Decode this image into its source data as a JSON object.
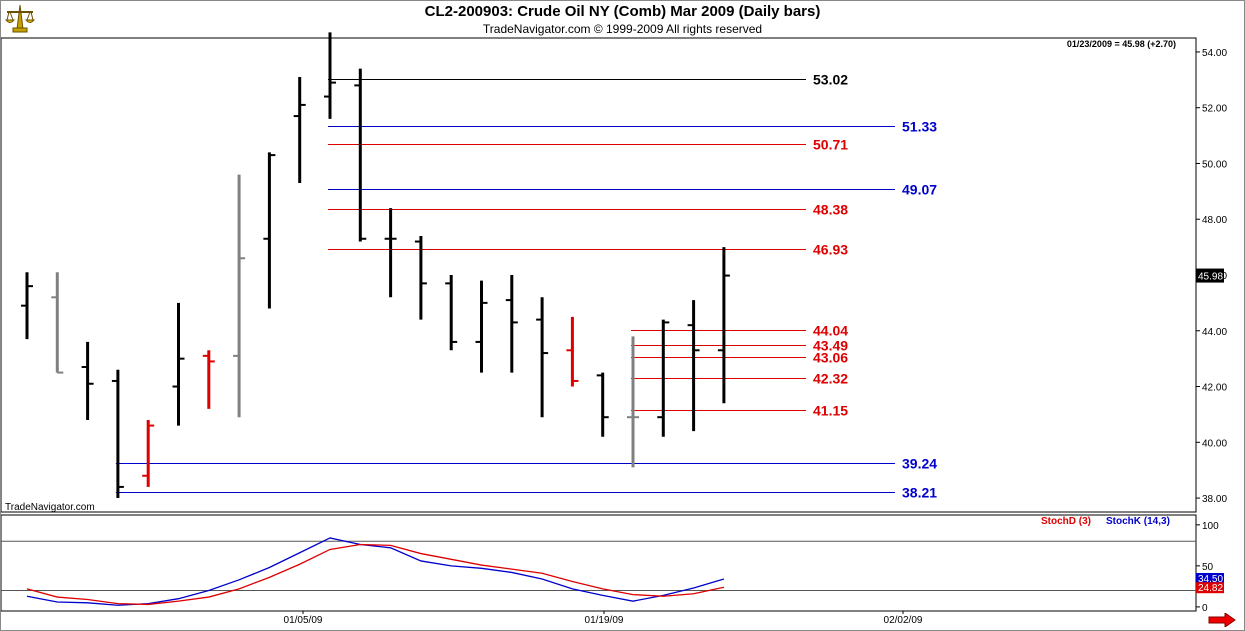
{
  "header": {
    "title": "CL2-200903:  Crude Oil NY (Comb) Mar 2009  (Daily bars)",
    "copyright": "TradeNavigator.com © 1999-2009 All rights reserved"
  },
  "watermark": "TradeNavigator.com",
  "last_quote": "01/23/2009 = 45.98 (+2.70)",
  "price_tag": "45.98",
  "stoch_tags": {
    "k": "34.50",
    "d": "24.82"
  },
  "colors": {
    "up": "#000000",
    "down": "#808080",
    "red": "#dd0000",
    "blue": "#0000cc",
    "background": "#ffffff"
  },
  "icons": {
    "logo": "scales-icon",
    "scroll": "arrow-right-icon"
  },
  "chart_data": [
    {
      "type": "ohlc",
      "price_axis": {
        "ticks": [
          "54.00",
          "52.00",
          "50.00",
          "48.00",
          "46.00",
          "44.00",
          "42.00",
          "40.00",
          "38.00"
        ],
        "ylim": [
          37.5,
          54.5
        ]
      },
      "date_axis": {
        "labels": [
          "01/05/09",
          "01/19/09",
          "02/02/09"
        ]
      },
      "bars": [
        {
          "high": 46.1,
          "low": 43.7,
          "open": 44.9,
          "close": 45.6,
          "color": "black"
        },
        {
          "high": 46.1,
          "low": 42.5,
          "open": 45.2,
          "close": 42.5,
          "color": "gray"
        },
        {
          "high": 43.6,
          "low": 40.8,
          "open": 42.7,
          "close": 42.1,
          "color": "black"
        },
        {
          "high": 42.6,
          "low": 38.0,
          "open": 42.2,
          "close": 38.4,
          "color": "black"
        },
        {
          "high": 40.8,
          "low": 38.4,
          "open": 38.8,
          "close": 40.6,
          "color": "red"
        },
        {
          "high": 45.0,
          "low": 40.6,
          "open": 42.0,
          "close": 43.0,
          "color": "black"
        },
        {
          "high": 43.3,
          "low": 41.2,
          "open": 43.1,
          "close": 42.9,
          "color": "red"
        },
        {
          "high": 49.6,
          "low": 40.9,
          "open": 43.1,
          "close": 46.6,
          "color": "gray"
        },
        {
          "high": 50.4,
          "low": 44.8,
          "open": 47.3,
          "close": 50.3,
          "color": "black"
        },
        {
          "high": 53.1,
          "low": 49.3,
          "open": 51.7,
          "close": 52.1,
          "color": "black"
        },
        {
          "high": 54.7,
          "low": 51.6,
          "open": 52.4,
          "close": 52.9,
          "color": "black"
        },
        {
          "high": 53.4,
          "low": 47.2,
          "open": 52.8,
          "close": 47.3,
          "color": "black"
        },
        {
          "high": 48.4,
          "low": 45.2,
          "open": 47.3,
          "close": 47.3,
          "color": "black"
        },
        {
          "high": 47.4,
          "low": 44.4,
          "open": 47.2,
          "close": 45.7,
          "color": "black"
        },
        {
          "high": 46.0,
          "low": 43.3,
          "open": 45.7,
          "close": 43.6,
          "color": "black"
        },
        {
          "high": 45.8,
          "low": 42.5,
          "open": 43.6,
          "close": 45.0,
          "color": "black"
        },
        {
          "high": 46.0,
          "low": 42.5,
          "open": 45.1,
          "close": 44.3,
          "color": "black"
        },
        {
          "high": 45.2,
          "low": 40.9,
          "open": 44.4,
          "close": 43.2,
          "color": "black"
        },
        {
          "high": 44.5,
          "low": 42.0,
          "open": 43.3,
          "close": 42.2,
          "color": "red"
        },
        {
          "high": 42.5,
          "low": 40.2,
          "open": 42.4,
          "close": 40.9,
          "color": "black"
        },
        {
          "high": 43.8,
          "low": 39.1,
          "open": 40.9,
          "close": 40.9,
          "color": "gray"
        },
        {
          "high": 44.4,
          "low": 40.2,
          "open": 40.9,
          "close": 44.3,
          "color": "black"
        },
        {
          "high": 45.1,
          "low": 40.4,
          "open": 44.2,
          "close": 43.3,
          "color": "black"
        },
        {
          "high": 47.0,
          "low": 41.4,
          "open": 43.3,
          "close": 45.98,
          "color": "black"
        }
      ],
      "levels": [
        {
          "value": 53.02,
          "label": "53.02",
          "color": "black",
          "from_bar": 10
        },
        {
          "value": 51.33,
          "label": "51.33",
          "color": "blue",
          "from_bar": 10
        },
        {
          "value": 50.71,
          "label": "50.71",
          "color": "red",
          "from_bar": 10
        },
        {
          "value": 49.07,
          "label": "49.07",
          "color": "blue",
          "from_bar": 10
        },
        {
          "value": 48.38,
          "label": "48.38",
          "color": "red",
          "from_bar": 10
        },
        {
          "value": 46.93,
          "label": "46.93",
          "color": "red",
          "from_bar": 10
        },
        {
          "value": 44.04,
          "label": "44.04",
          "color": "red",
          "from_bar": 20
        },
        {
          "value": 43.49,
          "label": "43.49",
          "color": "red",
          "from_bar": 20
        },
        {
          "value": 43.06,
          "label": "43.06",
          "color": "red",
          "from_bar": 20
        },
        {
          "value": 42.32,
          "label": "42.32",
          "color": "red",
          "from_bar": 20
        },
        {
          "value": 41.15,
          "label": "41.15",
          "color": "red",
          "from_bar": 20
        },
        {
          "value": 39.24,
          "label": "39.24",
          "color": "blue",
          "from_bar": 3
        },
        {
          "value": 38.21,
          "label": "38.21",
          "color": "blue",
          "from_bar": 3
        }
      ]
    },
    {
      "type": "line",
      "legend": [
        {
          "name": "StochD (3)",
          "color": "red"
        },
        {
          "name": "StochK (14,3)",
          "color": "blue"
        }
      ],
      "ylim": [
        -5,
        112
      ],
      "y_ticks": [
        "100",
        "50",
        "0"
      ],
      "guide_lines": [
        80,
        20
      ],
      "series": [
        {
          "name": "StochK (14,3)",
          "color": "blue",
          "values": [
            13,
            6,
            5,
            2,
            4,
            10,
            20,
            33,
            48,
            66,
            84,
            76,
            72,
            56,
            50,
            47,
            42,
            34,
            22,
            14,
            7,
            14,
            23,
            34
          ]
        },
        {
          "name": "StochD (3)",
          "color": "red",
          "values": [
            22,
            12,
            9,
            4,
            3,
            7,
            12,
            22,
            36,
            52,
            70,
            76,
            75,
            65,
            58,
            51,
            46,
            41,
            31,
            22,
            15,
            13,
            16,
            24
          ]
        }
      ]
    }
  ]
}
